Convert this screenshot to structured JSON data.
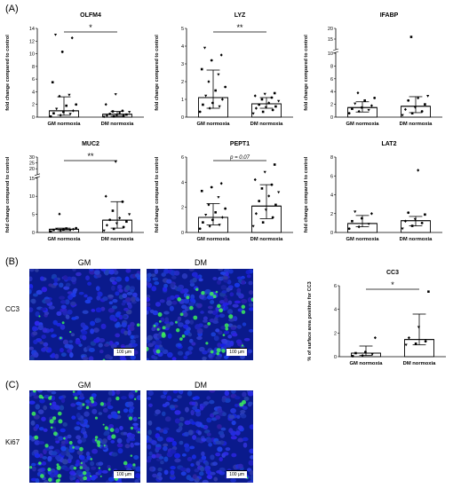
{
  "panels": {
    "a": "(A)",
    "b": "(B)",
    "c": "(C)"
  },
  "micro": {
    "col_gm": "GM",
    "col_dm": "DM",
    "row_cc3": "CC3",
    "row_ki67": "Ki67",
    "scale": "100 µm"
  },
  "chart_data": [
    {
      "id": "olfm4",
      "type": "bar",
      "title": "OLFM4",
      "ylabel": "fold change compared to control",
      "categories": [
        "GM normoxia",
        "DM normoxia"
      ],
      "values": [
        1.0,
        0.45
      ],
      "err": [
        [
          0.3,
          3.2
        ],
        [
          0.15,
          0.9
        ]
      ],
      "ylim": [
        0,
        14
      ],
      "yticks": [
        0,
        2,
        4,
        6,
        8,
        10,
        12,
        14
      ],
      "significance": "*",
      "points": [
        [
          0.1,
          0.3,
          0.5,
          0.6,
          0.8,
          1.0,
          1.3,
          1.8,
          2.0,
          3.3,
          3.5,
          5.5,
          10.3,
          12.5,
          13.0
        ],
        [
          0.05,
          0.1,
          0.2,
          0.25,
          0.3,
          0.4,
          0.5,
          0.7,
          0.8,
          0.9,
          1.0,
          2.0,
          3.6
        ]
      ]
    },
    {
      "id": "lyz",
      "type": "bar",
      "title": "LYZ",
      "ylabel": "fold change compared to control",
      "categories": [
        "GM normoxia",
        "DM normoxia"
      ],
      "values": [
        1.1,
        0.75
      ],
      "err": [
        [
          0.5,
          2.65
        ],
        [
          0.5,
          1.1
        ]
      ],
      "ylim": [
        0,
        5
      ],
      "yticks": [
        0,
        1,
        2,
        3,
        4,
        5
      ],
      "significance": "**",
      "points": [
        [
          0.3,
          0.5,
          0.6,
          0.7,
          0.8,
          1.0,
          1.2,
          1.5,
          1.7,
          2.0,
          2.4,
          2.7,
          3.2,
          3.5,
          3.9
        ],
        [
          0.2,
          0.3,
          0.4,
          0.5,
          0.55,
          0.6,
          0.7,
          0.8,
          0.9,
          1.0,
          1.1,
          1.2,
          1.3,
          1.35
        ]
      ]
    },
    {
      "id": "ifabp",
      "type": "bar",
      "title": "IFABP",
      "ylabel": "fold change compared to control",
      "categories": [
        "GM normoxia",
        "DM normoxia"
      ],
      "values": [
        1.5,
        1.7
      ],
      "err": [
        [
          0.8,
          2.4
        ],
        [
          0.7,
          3.2
        ]
      ],
      "ylim": [
        0,
        20
      ],
      "yticks": [
        0,
        2,
        4,
        6,
        8,
        10,
        15,
        20
      ],
      "ybreak": [
        10,
        10
      ],
      "significance": "",
      "points": [
        [
          0.6,
          0.9,
          1.1,
          1.3,
          1.5,
          1.8,
          2.1,
          2.6,
          3.0,
          3.8
        ],
        [
          0.3,
          0.6,
          0.9,
          1.2,
          1.5,
          2.0,
          2.6,
          3.0,
          3.3,
          16.0
        ]
      ]
    },
    {
      "id": "muc2",
      "type": "bar",
      "title": "MUC2",
      "ylabel": "fold change compared to control",
      "categories": [
        "GM normoxia",
        "DM normoxia"
      ],
      "values": [
        0.9,
        3.4
      ],
      "err": [
        [
          0.5,
          1.2
        ],
        [
          1.2,
          8.5
        ]
      ],
      "ylim": [
        0,
        30
      ],
      "yticks": [
        0,
        5,
        10,
        15,
        20,
        25,
        30
      ],
      "ybreak": [
        15,
        15
      ],
      "significance": "**",
      "points": [
        [
          0.3,
          0.5,
          0.6,
          0.7,
          0.8,
          0.9,
          1.0,
          1.1,
          1.2,
          5.1
        ],
        [
          0.5,
          1.0,
          1.5,
          2.0,
          2.5,
          3.0,
          3.5,
          4.0,
          5.0,
          6.0,
          8.5,
          10.0,
          26.0
        ]
      ]
    },
    {
      "id": "pept1",
      "type": "bar",
      "title": "PEPT1",
      "ylabel": "fold change compared to control",
      "categories": [
        "GM normoxia",
        "DM normoxia"
      ],
      "values": [
        1.2,
        2.1
      ],
      "err": [
        [
          0.6,
          2.3
        ],
        [
          1.1,
          3.8
        ]
      ],
      "ylim": [
        0,
        6
      ],
      "yticks": [
        0,
        2,
        4,
        6
      ],
      "significance": "p = 0.07",
      "points": [
        [
          0.3,
          0.5,
          0.6,
          0.8,
          1.0,
          1.2,
          1.4,
          1.6,
          1.9,
          2.2,
          2.8,
          3.3,
          3.6,
          3.9
        ],
        [
          0.5,
          0.8,
          1.2,
          1.5,
          1.8,
          2.2,
          2.5,
          2.9,
          3.2,
          3.5,
          3.8,
          4.2,
          4.8,
          5.4
        ]
      ]
    },
    {
      "id": "lat2",
      "type": "bar",
      "title": "LAT2",
      "ylabel": "fold change compared to control",
      "categories": [
        "GM normoxia",
        "DM normoxia"
      ],
      "values": [
        0.95,
        1.25
      ],
      "err": [
        [
          0.6,
          1.8
        ],
        [
          0.7,
          1.7
        ]
      ],
      "ylim": [
        0,
        8
      ],
      "yticks": [
        0,
        2,
        4,
        6,
        8
      ],
      "significance": "",
      "points": [
        [
          0.4,
          0.6,
          0.9,
          1.2,
          1.5,
          2.0,
          2.2
        ],
        [
          0.4,
          0.7,
          1.0,
          1.2,
          1.4,
          1.9,
          2.1,
          6.6
        ]
      ]
    },
    {
      "id": "cc3",
      "type": "bar",
      "title": "CC3",
      "ylabel": "% of surface area positive for CC3",
      "categories": [
        "GM normoxia",
        "DM normoxia"
      ],
      "values": [
        0.3,
        1.45
      ],
      "err": [
        [
          0.1,
          0.9
        ],
        [
          1.0,
          3.6
        ]
      ],
      "ylim": [
        0,
        6
      ],
      "yticks": [
        0,
        2,
        4,
        6
      ],
      "significance": "*",
      "points": [
        [
          0.05,
          0.1,
          0.2,
          0.3,
          0.4,
          1.6
        ],
        [
          1.0,
          1.1,
          1.3,
          1.6,
          2.5,
          5.5
        ]
      ]
    }
  ]
}
